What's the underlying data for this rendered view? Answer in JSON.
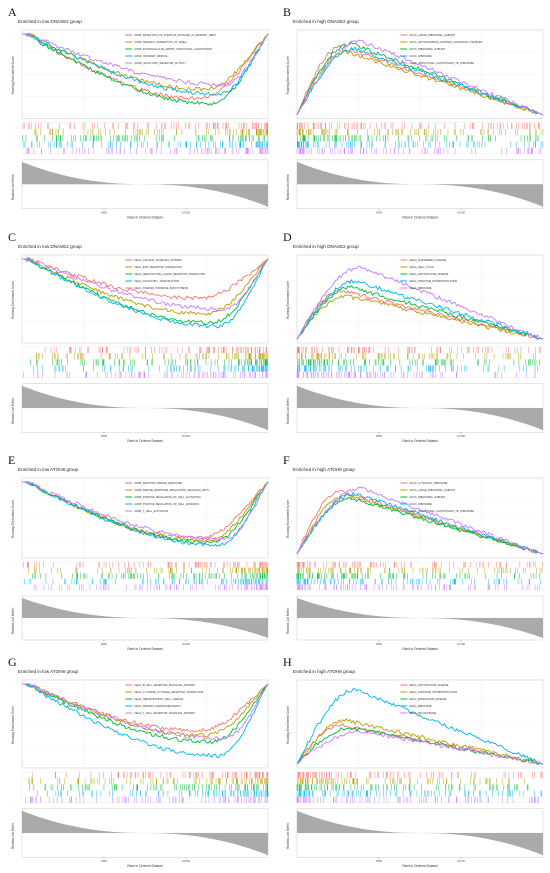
{
  "chart_data": [
    {
      "type": "line",
      "panel": "A",
      "title": "Enriched in low DNASE2 group",
      "ylabel": "Running Enrichment Score",
      "xlabel": "Rank in Ordered Dataset",
      "metric_label": "Ranked List Metric",
      "x_ticks": [
        "5000",
        "10,000"
      ],
      "direction": "down",
      "series": [
        {
          "name": "GOBP_DETECTION_OF_STIMULUS_INVOLVED_IN_SENSORY_PERC",
          "color": "#f8766d",
          "depth": 0.82
        },
        {
          "name": "GOBP_SENSORY_PERCEPTION_OF_SMELL",
          "color": "#b79f00",
          "depth": 0.7
        },
        {
          "name": "GOBP_EXTRACELLULAR_MATRIX_STRUCTURAL_CONSTITUENT",
          "color": "#00ba38",
          "depth": 0.88
        },
        {
          "name": "GOMF_ODORANT_BINDING",
          "color": "#00b4ef",
          "depth": 0.76
        },
        {
          "name": "GOMF_OLFACTORY_RECEPTOR_ACTIVITY",
          "color": "#c77cff",
          "depth": 0.64
        }
      ]
    },
    {
      "type": "line",
      "panel": "B",
      "title": "Enriched in high DNASE2 group",
      "ylabel": "Running Enrichment Score",
      "xlabel": "Rank in Ordered Dataset",
      "metric_label": "Ranked List Metric",
      "x_ticks": [
        "5000",
        "10,000"
      ],
      "direction": "up",
      "series": [
        {
          "name": "GOCC_LARGE_RIBOSOMAL_SUBUNIT",
          "color": "#f8766d",
          "depth": 0.86
        },
        {
          "name": "GOCC_MITOCHONDRIAL_PROTEIN_CONTAINING_COMPLEX",
          "color": "#b79f00",
          "depth": 0.8
        },
        {
          "name": "GOCC_RIBOSOMAL_SUBUNIT",
          "color": "#00ba38",
          "depth": 0.9
        },
        {
          "name": "GOCC_RIBOSOME",
          "color": "#00b4ef",
          "depth": 0.84
        },
        {
          "name": "GOMF_STRUCTURAL_CONSTITUENT_OF_RIBOSOME",
          "color": "#c77cff",
          "depth": 0.94
        }
      ]
    },
    {
      "type": "line",
      "panel": "C",
      "title": "Enriched in low DNASE2 group",
      "ylabel": "Running Enrichment Score",
      "xlabel": "Rank in Ordered Dataset",
      "metric_label": "Ranked List Metric",
      "x_ticks": [
        "5000",
        "10,000"
      ],
      "direction": "down",
      "series": [
        {
          "name": "KEGG_CALCIUM_SIGNALING_PATHWAY",
          "color": "#f8766d",
          "depth": 0.5
        },
        {
          "name": "KEGG_ECM_RECEPTOR_INTERACTION",
          "color": "#b79f00",
          "depth": 0.7
        },
        {
          "name": "KEGG_NEUROACTIVE_LIGAND_RECEPTOR_INTERACTION",
          "color": "#00ba38",
          "depth": 0.82
        },
        {
          "name": "KEGG_OLFACTORY_TRANSDUCTION",
          "color": "#00b4ef",
          "depth": 0.86
        },
        {
          "name": "KEGG_STEROID_HORMONE_BIOSYNTHESIS",
          "color": "#c77cff",
          "depth": 0.64
        }
      ]
    },
    {
      "type": "line",
      "panel": "D",
      "title": "Enriched in high DNASE2 group",
      "ylabel": "Running Enrichment Score",
      "xlabel": "Rank in Ordered Dataset",
      "metric_label": "Ranked List Metric",
      "x_ticks": [
        "5000",
        "10,000"
      ],
      "direction": "up",
      "series": [
        {
          "name": "KEGG_ALZHEIMERS_DISEASE",
          "color": "#f8766d",
          "depth": 0.62
        },
        {
          "name": "KEGG_CELL_CYCLE",
          "color": "#b79f00",
          "depth": 0.55
        },
        {
          "name": "KEGG_HUNTINGTONS_DISEASE",
          "color": "#00ba38",
          "depth": 0.66
        },
        {
          "name": "KEGG_OXIDATIVE_PHOSPHORYLATION",
          "color": "#00b4ef",
          "depth": 0.74
        },
        {
          "name": "KEGG_RIBOSOME",
          "color": "#c77cff",
          "depth": 0.92
        }
      ]
    },
    {
      "type": "line",
      "panel": "E",
      "title": "Enriched in low ATOH8 group",
      "ylabel": "Running Enrichment Score",
      "xlabel": "Rank in Ordered Dataset",
      "metric_label": "Ranked List Metric",
      "x_ticks": [
        "5000",
        "10,000"
      ],
      "direction": "down",
      "series": [
        {
          "name": "GOBP_ADAPTIVE_IMMUNE_RESPONSE",
          "color": "#f8766d",
          "depth": 0.8
        },
        {
          "name": "GOBP_IMMUNE_RESPONSE_REGULATING_SIGNALING_PATH",
          "color": "#b79f00",
          "depth": 0.84
        },
        {
          "name": "GOBP_POSITIVE_REGULATION_OF_CELL_ACTIVATION",
          "color": "#00ba38",
          "depth": 0.86
        },
        {
          "name": "GOBP_POSITIVE_REGULATION_OF_CELL_ADHESION",
          "color": "#00b4ef",
          "depth": 0.9
        },
        {
          "name": "GOBP_T_CELL_ACTIVATION",
          "color": "#c77cff",
          "depth": 0.82
        }
      ]
    },
    {
      "type": "line",
      "panel": "F",
      "title": "Enriched in high ATOH8 group",
      "ylabel": "Running Enrichment Score",
      "xlabel": "Rank in Ordered Dataset",
      "metric_label": "Ranked List Metric",
      "x_ticks": [
        "5000",
        "10,000"
      ],
      "direction": "up",
      "series": [
        {
          "name": "GOCC_CYTOSOLIC_RIBOSOME",
          "color": "#f8766d",
          "depth": 0.9
        },
        {
          "name": "GOCC_LARGE_RIBOSOMAL_SUBUNIT",
          "color": "#b79f00",
          "depth": 0.84
        },
        {
          "name": "GOCC_RIBOSOMAL_SUBUNIT",
          "color": "#00ba38",
          "depth": 0.8
        },
        {
          "name": "GOCC_RIBOSOME",
          "color": "#00b4ef",
          "depth": 0.86
        },
        {
          "name": "GOMF_STRUCTURAL_CONSTITUENT_OF_RIBOSOME",
          "color": "#c77cff",
          "depth": 0.94
        }
      ]
    },
    {
      "type": "line",
      "panel": "G",
      "title": "Enriched in low ATOH8 group",
      "ylabel": "Running Enrichment Score",
      "xlabel": "Rank in Ordered Dataset",
      "metric_label": "Ranked List Metric",
      "x_ticks": [
        "5000",
        "10,000"
      ],
      "direction": "down",
      "series": [
        {
          "name": "KEGG_B_CELL_RECEPTOR_SIGNALING_PATHWAY",
          "color": "#f8766d",
          "depth": 0.6
        },
        {
          "name": "KEGG_CYTOKINE_CYTOKINE_RECEPTOR_INTERACTION",
          "color": "#b79f00",
          "depth": 0.66
        },
        {
          "name": "KEGG_HEMATOPOIETIC_CELL_LINEAGE",
          "color": "#00ba38",
          "depth": 0.74
        },
        {
          "name": "KEGG_PRIMARY_IMMUNODEFICIENCY",
          "color": "#00b4ef",
          "depth": 0.92
        },
        {
          "name": "KEGG_T_CELL_RECEPTOR_SIGNALING_PATHWAY",
          "color": "#c77cff",
          "depth": 0.7
        }
      ]
    },
    {
      "type": "line",
      "panel": "H",
      "title": "Enriched in high ATOH8 group",
      "ylabel": "Running Enrichment Score",
      "xlabel": "Rank in Ordered Dataset",
      "metric_label": "Ranked List Metric",
      "x_ticks": [
        "5000",
        "10,000"
      ],
      "direction": "up",
      "series": [
        {
          "name": "KEGG_HUNTINGTONS_DISEASE",
          "color": "#f8766d",
          "depth": 0.5
        },
        {
          "name": "KEGG_OXIDATIVE_PHOSPHORYLATION",
          "color": "#b79f00",
          "depth": 0.56
        },
        {
          "name": "KEGG_PARKINSONS_DISEASE",
          "color": "#00ba38",
          "depth": 0.46
        },
        {
          "name": "KEGG_RIBOSOME",
          "color": "#00b4ef",
          "depth": 0.95
        },
        {
          "name": "KEGG_SPLICEOSOME",
          "color": "#c77cff",
          "depth": 0.42
        }
      ]
    }
  ]
}
